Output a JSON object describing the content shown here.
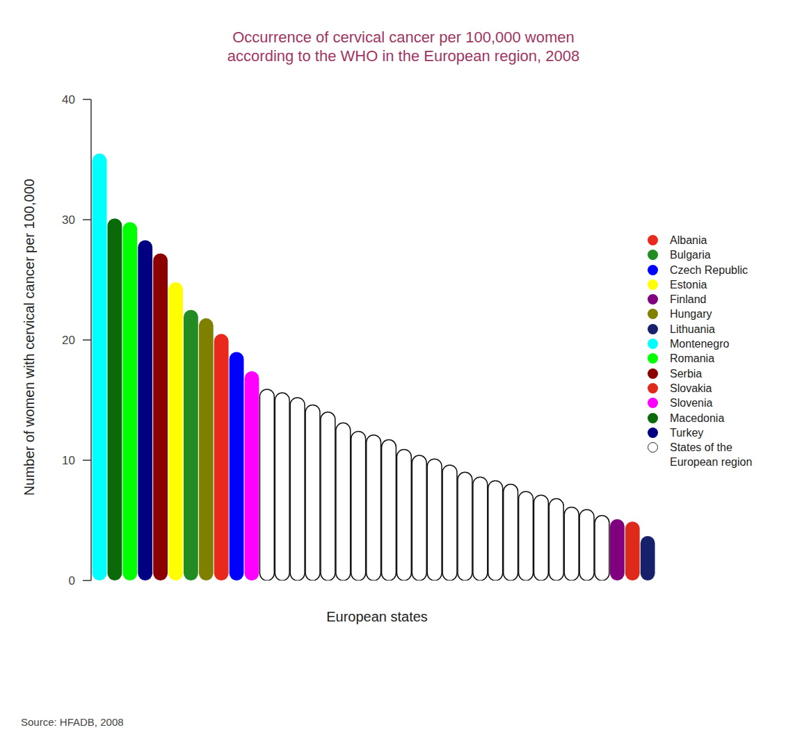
{
  "chart_data": {
    "type": "bar",
    "title": [
      "Occurrence of cervical cancer per 100,000 women",
      "according to the WHO in the European region, 2008"
    ],
    "x_label": "European states",
    "y_label": "Number of women with cervical cancer per 100,000",
    "source": "Source: HFADB, 2008",
    "ylim": [
      0,
      40
    ],
    "yticks": [
      0,
      10,
      20,
      30,
      40
    ],
    "tick_labels": "y",
    "legend": "right",
    "categories": [
      null,
      null,
      null,
      null,
      null,
      null,
      null,
      null,
      null,
      null,
      null,
      null,
      null,
      null,
      null,
      null,
      null,
      null,
      null,
      null,
      null,
      null,
      null,
      null,
      null,
      null,
      null,
      null,
      null,
      null,
      null,
      null,
      null,
      null,
      null,
      null,
      null
    ],
    "series": [
      {
        "name": "Albania",
        "color": "#e8291c",
        "values": [
          null,
          null,
          null,
          null,
          null,
          null,
          null,
          null,
          20.5,
          null,
          null,
          null,
          null,
          null,
          null,
          null,
          null,
          null,
          null,
          null,
          null,
          null,
          null,
          null,
          null,
          null,
          null,
          null,
          null,
          null,
          null,
          null,
          null,
          null,
          null,
          null,
          null
        ]
      },
      {
        "name": "Bulgaria",
        "color": "#228b22",
        "values": [
          null,
          null,
          null,
          null,
          null,
          null,
          22.5,
          null,
          null,
          null,
          null,
          null,
          null,
          null,
          null,
          null,
          null,
          null,
          null,
          null,
          null,
          null,
          null,
          null,
          null,
          null,
          null,
          null,
          null,
          null,
          null,
          null,
          null,
          null,
          null,
          null,
          null
        ]
      },
      {
        "name": "Czech Republic",
        "color": "#0000ff",
        "values": [
          null,
          null,
          null,
          null,
          null,
          null,
          null,
          null,
          null,
          19.0,
          null,
          null,
          null,
          null,
          null,
          null,
          null,
          null,
          null,
          null,
          null,
          null,
          null,
          null,
          null,
          null,
          null,
          null,
          null,
          null,
          null,
          null,
          null,
          null,
          null,
          null,
          null
        ]
      },
      {
        "name": "Estonia",
        "color": "#ffff00",
        "values": [
          null,
          null,
          null,
          null,
          null,
          24.8,
          null,
          null,
          null,
          null,
          null,
          null,
          null,
          null,
          null,
          null,
          null,
          null,
          null,
          null,
          null,
          null,
          null,
          null,
          null,
          null,
          null,
          null,
          null,
          null,
          null,
          null,
          null,
          null,
          null,
          null,
          null
        ]
      },
      {
        "name": "Finland",
        "color": "#800080",
        "values": [
          null,
          null,
          null,
          null,
          null,
          null,
          null,
          null,
          null,
          null,
          null,
          null,
          null,
          null,
          null,
          null,
          null,
          null,
          null,
          null,
          null,
          null,
          null,
          null,
          null,
          null,
          null,
          null,
          null,
          null,
          null,
          null,
          null,
          null,
          5.1,
          null,
          null
        ]
      },
      {
        "name": "Hungary",
        "color": "#808000",
        "values": [
          null,
          null,
          null,
          null,
          null,
          null,
          null,
          21.8,
          null,
          null,
          null,
          null,
          null,
          null,
          null,
          null,
          null,
          null,
          null,
          null,
          null,
          null,
          null,
          null,
          null,
          null,
          null,
          null,
          null,
          null,
          null,
          null,
          null,
          null,
          null,
          null,
          null
        ]
      },
      {
        "name": "Lithuania",
        "color": "#16206b",
        "values": [
          null,
          null,
          null,
          null,
          null,
          null,
          null,
          null,
          null,
          null,
          null,
          null,
          null,
          null,
          null,
          null,
          null,
          null,
          null,
          null,
          null,
          null,
          null,
          null,
          null,
          null,
          null,
          null,
          null,
          null,
          null,
          null,
          null,
          null,
          null,
          null,
          3.7
        ]
      },
      {
        "name": "Montenegro",
        "color": "#00ffff",
        "values": [
          35.5,
          null,
          null,
          null,
          null,
          null,
          null,
          null,
          null,
          null,
          null,
          null,
          null,
          null,
          null,
          null,
          null,
          null,
          null,
          null,
          null,
          null,
          null,
          null,
          null,
          null,
          null,
          null,
          null,
          null,
          null,
          null,
          null,
          null,
          null,
          null,
          null
        ]
      },
      {
        "name": "Romania",
        "color": "#00ff00",
        "values": [
          null,
          null,
          29.8,
          null,
          null,
          null,
          null,
          null,
          null,
          null,
          null,
          null,
          null,
          null,
          null,
          null,
          null,
          null,
          null,
          null,
          null,
          null,
          null,
          null,
          null,
          null,
          null,
          null,
          null,
          null,
          null,
          null,
          null,
          null,
          null,
          null,
          null
        ]
      },
      {
        "name": "Serbia",
        "color": "#8b0000",
        "values": [
          null,
          null,
          null,
          null,
          27.2,
          null,
          null,
          null,
          null,
          null,
          null,
          null,
          null,
          null,
          null,
          null,
          null,
          null,
          null,
          null,
          null,
          null,
          null,
          null,
          null,
          null,
          null,
          null,
          null,
          null,
          null,
          null,
          null,
          null,
          null,
          null,
          null
        ]
      },
      {
        "name": "Slovakia",
        "color": "#dd2a1a",
        "values": [
          null,
          null,
          null,
          null,
          null,
          null,
          null,
          null,
          null,
          null,
          null,
          null,
          null,
          null,
          null,
          null,
          null,
          null,
          null,
          null,
          null,
          null,
          null,
          null,
          null,
          null,
          null,
          null,
          null,
          null,
          null,
          null,
          null,
          null,
          null,
          4.9,
          null
        ]
      },
      {
        "name": "Slovenia",
        "color": "#ff00ff",
        "values": [
          null,
          null,
          null,
          null,
          null,
          null,
          null,
          null,
          null,
          null,
          17.4,
          null,
          null,
          null,
          null,
          null,
          null,
          null,
          null,
          null,
          null,
          null,
          null,
          null,
          null,
          null,
          null,
          null,
          null,
          null,
          null,
          null,
          null,
          null,
          null,
          null,
          null
        ]
      },
      {
        "name": "Macedonia",
        "color": "#0a6a0a",
        "values": [
          null,
          30.1,
          null,
          null,
          null,
          null,
          null,
          null,
          null,
          null,
          null,
          null,
          null,
          null,
          null,
          null,
          null,
          null,
          null,
          null,
          null,
          null,
          null,
          null,
          null,
          null,
          null,
          null,
          null,
          null,
          null,
          null,
          null,
          null,
          null,
          null,
          null
        ]
      },
      {
        "name": "Turkey",
        "color": "#000080",
        "values": [
          null,
          null,
          null,
          28.3,
          null,
          null,
          null,
          null,
          null,
          null,
          null,
          null,
          null,
          null,
          null,
          null,
          null,
          null,
          null,
          null,
          null,
          null,
          null,
          null,
          null,
          null,
          null,
          null,
          null,
          null,
          null,
          null,
          null,
          null,
          null,
          null,
          null
        ]
      },
      {
        "name": "States of the European region",
        "color": "#ffffff",
        "values": [
          null,
          null,
          null,
          null,
          null,
          null,
          null,
          null,
          null,
          null,
          null,
          15.9,
          15.6,
          15.2,
          14.6,
          14.0,
          13.1,
          12.4,
          12.1,
          11.7,
          10.9,
          10.4,
          10.1,
          9.6,
          9.0,
          8.6,
          8.3,
          8.0,
          7.4,
          7.1,
          6.8,
          6.1,
          5.9,
          5.4,
          null,
          null,
          null
        ]
      }
    ]
  }
}
